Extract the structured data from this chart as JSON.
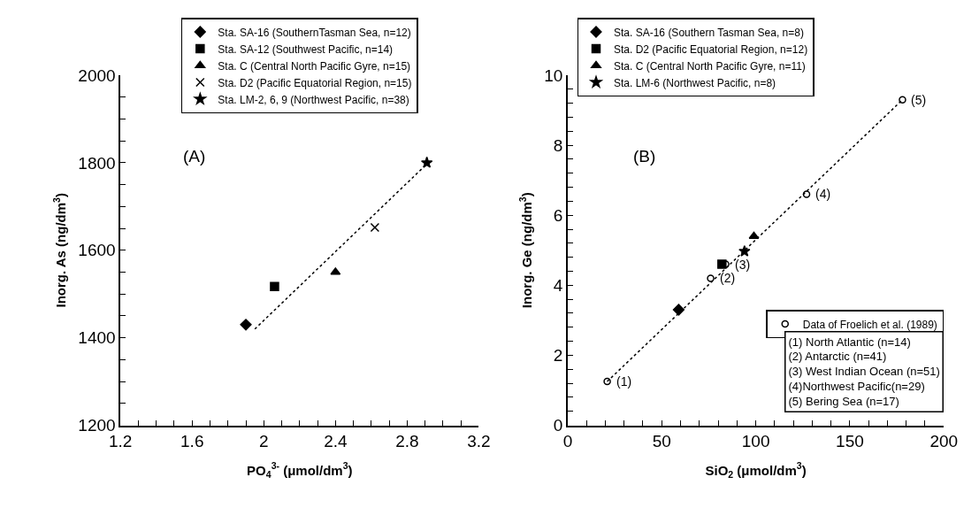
{
  "chart_data": [
    {
      "type": "scatter",
      "xlabel": "PO$_{4}$$^{3-}$ (μmol/dm$^{3}$)",
      "ylabel": "Inorg. As (ng/dm$^{3}$)",
      "annotations": [
        "(A)"
      ],
      "xlim": [
        1.2,
        3.2
      ],
      "ylim": [
        1200,
        2000
      ],
      "legend": "top",
      "xticks": [
        1.2,
        {
          "value": 1.3,
          "label": null
        },
        {
          "value": 1.4,
          "label": null
        },
        {
          "value": 1.5,
          "label": null
        },
        1.6,
        {
          "value": 1.7,
          "label": null
        },
        {
          "value": 1.8,
          "label": null
        },
        {
          "value": 1.9,
          "label": null
        },
        2,
        {
          "value": 2.1,
          "label": null
        },
        {
          "value": 2.2,
          "label": null
        },
        {
          "value": 2.3,
          "label": null
        },
        2.4,
        {
          "value": 2.5,
          "label": null
        },
        {
          "value": 2.6,
          "label": null
        },
        {
          "value": 2.7,
          "label": null
        },
        2.8,
        {
          "value": 2.9,
          "label": null
        },
        {
          "value": 3.0,
          "label": null
        },
        {
          "value": 3.1,
          "label": null
        },
        3.2
      ],
      "yticks": [
        1200,
        {
          "value": 1250,
          "label": null
        },
        {
          "value": 1300,
          "label": null
        },
        {
          "value": 1350,
          "label": null
        },
        1400,
        {
          "value": 1450,
          "label": null
        },
        {
          "value": 1500,
          "label": null
        },
        {
          "value": 1550,
          "label": null
        },
        1600,
        {
          "value": 1650,
          "label": null
        },
        {
          "value": 1700,
          "label": null
        },
        {
          "value": 1750,
          "label": null
        },
        1800,
        {
          "value": 1850,
          "label": null
        },
        {
          "value": 1900,
          "label": null
        },
        {
          "value": 1950,
          "label": null
        },
        2000
      ],
      "series": [
        {
          "name": "Sta. SA-16 (SouthernTasman Sea, n=12)",
          "color": "#000000",
          "marker": "diamond",
          "x": [
            1.9
          ],
          "values": [
            1430
          ]
        },
        {
          "name": "Sta. SA-12 (Southwest Pacific, n=14)",
          "color": "#000000",
          "marker": "square",
          "x": [
            2.06
          ],
          "values": [
            1517
          ]
        },
        {
          "name": "Sta. C (Central North Pacific Gyre, n=15)",
          "color": "#000000",
          "marker": "triangle",
          "x": [
            2.4
          ],
          "values": [
            1550
          ]
        },
        {
          "name": "Sta. D2 (Pacific Equatorial Region, n=15)",
          "color": "#000000",
          "marker": "cross",
          "x": [
            2.62
          ],
          "values": [
            1652
          ]
        },
        {
          "name": "Sta. LM-2, 6, 9 (Northwest Pacific, n=38)",
          "color": "#000000",
          "marker": "star",
          "x": [
            2.91
          ],
          "values": [
            1800
          ]
        },
        {
          "type": "line",
          "color": "#000000",
          "line_style": "dotted",
          "marker": "none",
          "x": [
            1.95,
            2.93
          ],
          "values": [
            1420,
            1805
          ]
        }
      ]
    },
    {
      "type": "scatter",
      "xlabel": "SiO$_{2}$ (μmol/dm$^{3}$)",
      "ylabel": "Inorg. Ge (ng/dm$^{3}$)",
      "annotations": [
        "(B)",
        {
          "text": "(1)",
          "x": 21,
          "y": 1.25
        },
        {
          "text": "(2)",
          "x": 76,
          "y": 4.2
        },
        {
          "text": "(3)",
          "x": 84,
          "y": 4.6
        },
        {
          "text": "(4)",
          "x": 127,
          "y": 6.6
        },
        {
          "text": "(5)",
          "x": 178,
          "y": 9.3
        },
        "(1) North Atlantic (n=14)",
        "(2) Antarctic (n=41)",
        "(3) West Indian Ocean (n=51)",
        "(4)Northwest Pacific(n=29)",
        "(5) Bering Sea (n=17)"
      ],
      "xlim": [
        0,
        200
      ],
      "ylim": [
        0,
        10
      ],
      "legend": "top left",
      "xticks": [
        0,
        {
          "value": 10,
          "label": null
        },
        {
          "value": 20,
          "label": null
        },
        {
          "value": 30,
          "label": null
        },
        {
          "value": 40,
          "label": null
        },
        50,
        {
          "value": 60,
          "label": null
        },
        {
          "value": 70,
          "label": null
        },
        {
          "value": 80,
          "label": null
        },
        {
          "value": 90,
          "label": null
        },
        100,
        {
          "value": 110,
          "label": null
        },
        {
          "value": 120,
          "label": null
        },
        {
          "value": 130,
          "label": null
        },
        {
          "value": 140,
          "label": null
        },
        150,
        {
          "value": 160,
          "label": null
        },
        {
          "value": 170,
          "label": null
        },
        {
          "value": 180,
          "label": null
        },
        {
          "value": 190,
          "label": null
        },
        200
      ],
      "yticks": [
        0,
        {
          "value": 0.4,
          "label": null
        },
        {
          "value": 0.8,
          "label": null
        },
        {
          "value": 1.2,
          "label": null
        },
        {
          "value": 1.6,
          "label": null
        },
        2,
        {
          "value": 2.4,
          "label": null
        },
        {
          "value": 2.8,
          "label": null
        },
        {
          "value": 3.2,
          "label": null
        },
        {
          "value": 3.6,
          "label": null
        },
        4,
        {
          "value": 4.4,
          "label": null
        },
        {
          "value": 4.8,
          "label": null
        },
        {
          "value": 5.2,
          "label": null
        },
        {
          "value": 5.6,
          "label": null
        },
        6,
        {
          "value": 6.4,
          "label": null
        },
        {
          "value": 6.8,
          "label": null
        },
        {
          "value": 7.2,
          "label": null
        },
        {
          "value": 7.6,
          "label": null
        },
        8,
        {
          "value": 8.4,
          "label": null
        },
        {
          "value": 8.8,
          "label": null
        },
        {
          "value": 9.2,
          "label": null
        },
        {
          "value": 9.6,
          "label": null
        },
        10
      ],
      "series": [
        {
          "name": "Sta. SA-16 (Southern Tasman Sea, n=8)",
          "color": "#000000",
          "marker": "diamond",
          "x": [
            59
          ],
          "values": [
            3.3
          ]
        },
        {
          "name": "Sta. D2 (Pacific Equatorial Region, n=12)",
          "color": "#000000",
          "marker": "square",
          "x": [
            82
          ],
          "values": [
            4.6
          ]
        },
        {
          "name": "Sta. C (Central North Pacific Gyre, n=11)",
          "color": "#000000",
          "marker": "triangle",
          "x": [
            99
          ],
          "values": [
            5.4
          ]
        },
        {
          "name": "Sta. LM-6 (Northwest Pacific, n=8)",
          "color": "#000000",
          "marker": "star",
          "x": [
            94
          ],
          "values": [
            4.97
          ]
        },
        {
          "type": "line",
          "color": "#000000",
          "line_style": "dotted",
          "marker": "none",
          "x": [
            21,
            178
          ],
          "values": [
            1.25,
            9.3
          ]
        },
        {
          "name": "Data of Froelich et al. (1989)",
          "color": "#000000",
          "marker": "circle-open",
          "x": [
            21,
            76,
            84,
            127,
            178
          ],
          "values": [
            1.25,
            4.2,
            4.6,
            6.6,
            9.3
          ]
        }
      ]
    }
  ]
}
